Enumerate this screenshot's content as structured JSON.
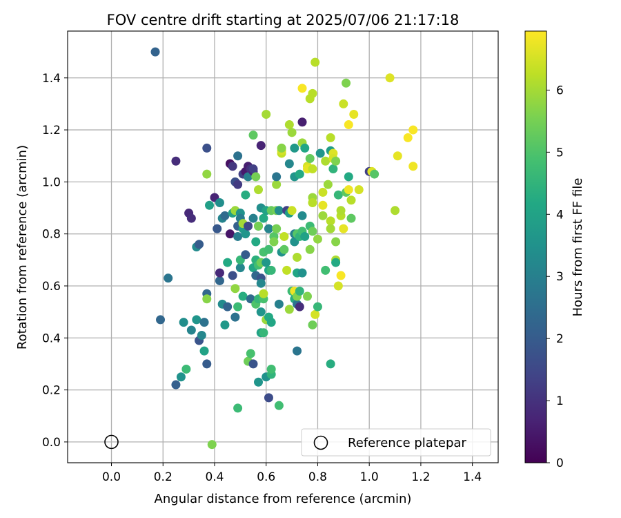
{
  "chart_data": {
    "type": "scatter",
    "title": "FOV centre drift starting at 2025/07/06 21:17:18",
    "xlabel": "Angular distance from reference (arcmin)",
    "ylabel": "Rotation from reference (arcmin)",
    "xlim": [
      -0.17,
      1.5
    ],
    "ylim": [
      -0.08,
      1.58
    ],
    "xticks": [
      0.0,
      0.2,
      0.4,
      0.6,
      0.8,
      1.0,
      1.2,
      1.4
    ],
    "yticks": [
      0.0,
      0.2,
      0.4,
      0.6,
      0.8,
      1.0,
      1.2,
      1.4
    ],
    "xtick_labels": [
      "0.0",
      "0.2",
      "0.4",
      "0.6",
      "0.8",
      "1.0",
      "1.2",
      "1.4"
    ],
    "ytick_labels": [
      "0.0",
      "0.2",
      "0.4",
      "0.6",
      "0.8",
      "1.0",
      "1.2",
      "1.4"
    ],
    "grid": true,
    "colormap": "viridis",
    "colorbar": {
      "label": "Hours from first FF file",
      "range": [
        0,
        6.95
      ],
      "ticks": [
        0,
        1,
        2,
        3,
        4,
        5,
        6
      ],
      "tick_labels": [
        "0",
        "1",
        "2",
        "3",
        "4",
        "5",
        "6"
      ]
    },
    "legend": {
      "position": "lower-right",
      "entries": [
        "Reference platepar"
      ]
    },
    "reference_point": {
      "x": 0.0,
      "y": 0.0
    },
    "series": [
      {
        "points": [
          [
            0.17,
            1.5,
            2.2
          ],
          [
            0.25,
            1.08,
            0.9
          ],
          [
            0.19,
            0.47,
            2.3
          ],
          [
            0.22,
            0.63,
            2.7
          ],
          [
            0.25,
            0.22,
            2.1
          ],
          [
            0.27,
            0.25,
            3.5
          ],
          [
            0.28,
            0.46,
            3.4
          ],
          [
            0.29,
            0.28,
            4.7
          ],
          [
            0.3,
            0.88,
            0.8
          ],
          [
            0.31,
            0.86,
            0.9
          ],
          [
            0.31,
            0.43,
            3.1
          ],
          [
            0.33,
            0.75,
            3.3
          ],
          [
            0.33,
            0.47,
            3.6
          ],
          [
            0.34,
            0.76,
            2.0
          ],
          [
            0.34,
            0.39,
            1.8
          ],
          [
            0.35,
            0.41,
            3.2
          ],
          [
            0.36,
            0.35,
            4.0
          ],
          [
            0.36,
            0.46,
            2.6
          ],
          [
            0.37,
            1.13,
            1.7
          ],
          [
            0.37,
            0.57,
            2.3
          ],
          [
            0.37,
            0.3,
            2.0
          ],
          [
            0.37,
            0.55,
            5.7
          ],
          [
            0.37,
            1.03,
            5.8
          ],
          [
            0.38,
            0.91,
            3.9
          ],
          [
            0.39,
            -0.01,
            5.6
          ],
          [
            0.4,
            0.94,
            0.7
          ],
          [
            0.41,
            0.82,
            1.9
          ],
          [
            0.42,
            0.92,
            3.4
          ],
          [
            0.42,
            0.62,
            2.3
          ],
          [
            0.42,
            0.65,
            0.8
          ],
          [
            0.43,
            0.86,
            3.1
          ],
          [
            0.43,
            0.53,
            3.3
          ],
          [
            0.44,
            0.45,
            3.7
          ],
          [
            0.44,
            0.87,
            2.4
          ],
          [
            0.45,
            0.69,
            4.2
          ],
          [
            0.45,
            0.52,
            2.2
          ],
          [
            0.46,
            0.8,
            0.4
          ],
          [
            0.46,
            1.07,
            0.3
          ],
          [
            0.47,
            1.06,
            1.1
          ],
          [
            0.47,
            0.64,
            1.7
          ],
          [
            0.47,
            0.88,
            3.9
          ],
          [
            0.48,
            0.89,
            5.9
          ],
          [
            0.48,
            0.48,
            2.6
          ],
          [
            0.48,
            0.59,
            5.8
          ],
          [
            0.48,
            1.0,
            1.7
          ],
          [
            0.49,
            0.79,
            2.9
          ],
          [
            0.49,
            0.83,
            2.1
          ],
          [
            0.49,
            1.1,
            2.6
          ],
          [
            0.49,
            0.52,
            4.7
          ],
          [
            0.49,
            0.99,
            1.2
          ],
          [
            0.49,
            0.13,
            4.7
          ],
          [
            0.5,
            0.88,
            3.5
          ],
          [
            0.5,
            0.86,
            2.9
          ],
          [
            0.5,
            0.67,
            3.2
          ],
          [
            0.5,
            0.7,
            4.6
          ],
          [
            0.51,
            0.82,
            3.8
          ],
          [
            0.51,
            0.56,
            4.3
          ],
          [
            0.51,
            0.84,
            6.0
          ],
          [
            0.51,
            1.03,
            1.3
          ],
          [
            0.52,
            1.04,
            0.5
          ],
          [
            0.52,
            0.8,
            3.6
          ],
          [
            0.52,
            0.95,
            4.3
          ],
          [
            0.52,
            0.72,
            2.0
          ],
          [
            0.53,
            0.83,
            1.5
          ],
          [
            0.53,
            1.02,
            3.0
          ],
          [
            0.53,
            0.31,
            5.4
          ],
          [
            0.53,
            1.06,
            0.6
          ],
          [
            0.54,
            0.34,
            4.9
          ],
          [
            0.54,
            1.05,
            1.0
          ],
          [
            0.54,
            0.55,
            2.4
          ],
          [
            0.55,
            1.04,
            0.9
          ],
          [
            0.55,
            0.67,
            4.1
          ],
          [
            0.55,
            1.05,
            1.3
          ],
          [
            0.55,
            0.86,
            3.0
          ],
          [
            0.55,
            0.3,
            1.8
          ],
          [
            0.55,
            1.18,
            5.2
          ],
          [
            0.56,
            0.64,
            2.3
          ],
          [
            0.56,
            0.7,
            4.4
          ],
          [
            0.56,
            0.53,
            5.0
          ],
          [
            0.56,
            1.02,
            5.5
          ],
          [
            0.56,
            0.77,
            4.2
          ],
          [
            0.57,
            0.23,
            3.6
          ],
          [
            0.57,
            0.83,
            3.3
          ],
          [
            0.57,
            0.83,
            5.5
          ],
          [
            0.57,
            0.97,
            6.1
          ],
          [
            0.57,
            0.55,
            4.6
          ],
          [
            0.57,
            0.68,
            4.8
          ],
          [
            0.58,
            0.63,
            1.8
          ],
          [
            0.58,
            0.61,
            3.2
          ],
          [
            0.58,
            0.5,
            3.6
          ],
          [
            0.58,
            0.9,
            3.4
          ],
          [
            0.58,
            1.14,
            0.7
          ],
          [
            0.58,
            0.69,
            5.4
          ],
          [
            0.58,
            0.42,
            4.0
          ],
          [
            0.59,
            0.55,
            4.9
          ],
          [
            0.59,
            0.42,
            4.6
          ],
          [
            0.59,
            0.86,
            4.2
          ],
          [
            0.59,
            0.73,
            4.9
          ],
          [
            0.59,
            0.57,
            6.2
          ],
          [
            0.6,
            1.26,
            6.0
          ],
          [
            0.6,
            0.25,
            3.5
          ],
          [
            0.6,
            0.69,
            3.7
          ],
          [
            0.6,
            0.89,
            4.0
          ],
          [
            0.6,
            0.47,
            5.9
          ],
          [
            0.61,
            0.66,
            4.1
          ],
          [
            0.61,
            0.74,
            4.8
          ],
          [
            0.61,
            0.82,
            3.1
          ],
          [
            0.61,
            0.48,
            4.2
          ],
          [
            0.61,
            0.17,
            1.6
          ],
          [
            0.62,
            0.26,
            4.5
          ],
          [
            0.62,
            0.28,
            4.8
          ],
          [
            0.62,
            0.89,
            5.3
          ],
          [
            0.62,
            0.46,
            4.1
          ],
          [
            0.62,
            0.66,
            4.6
          ],
          [
            0.63,
            0.79,
            5.1
          ],
          [
            0.63,
            0.77,
            5.6
          ],
          [
            0.64,
            0.82,
            5.5
          ],
          [
            0.64,
            0.99,
            5.9
          ],
          [
            0.64,
            1.02,
            2.7
          ],
          [
            0.64,
            0.89,
            5.5
          ],
          [
            0.65,
            0.89,
            3.4
          ],
          [
            0.65,
            0.14,
            4.8
          ],
          [
            0.65,
            0.53,
            3.0
          ],
          [
            0.66,
            0.73,
            3.5
          ],
          [
            0.66,
            1.11,
            6.3
          ],
          [
            0.66,
            1.12,
            6.5
          ],
          [
            0.66,
            1.13,
            5.7
          ],
          [
            0.67,
            0.79,
            6.3
          ],
          [
            0.67,
            0.74,
            5.2
          ],
          [
            0.68,
            0.89,
            1.3
          ],
          [
            0.68,
            0.66,
            6.3
          ],
          [
            0.69,
            1.22,
            6.1
          ],
          [
            0.69,
            0.88,
            3.8
          ],
          [
            0.69,
            0.51,
            5.9
          ],
          [
            0.69,
            1.07,
            3.2
          ],
          [
            0.7,
            1.19,
            5.9
          ],
          [
            0.7,
            0.58,
            4.7
          ],
          [
            0.7,
            0.89,
            6.4
          ],
          [
            0.71,
            1.13,
            3.7
          ],
          [
            0.71,
            1.02,
            3.6
          ],
          [
            0.71,
            0.77,
            3.5
          ],
          [
            0.71,
            0.8,
            3.0
          ],
          [
            0.71,
            0.55,
            4.3
          ],
          [
            0.71,
            0.58,
            6.8
          ],
          [
            0.72,
            0.71,
            6.1
          ],
          [
            0.72,
            0.53,
            2.7
          ],
          [
            0.72,
            0.65,
            4.1
          ],
          [
            0.72,
            0.35,
            2.7
          ],
          [
            0.72,
            0.8,
            5.1
          ],
          [
            0.72,
            0.56,
            5.6
          ],
          [
            0.73,
            0.58,
            4.5
          ],
          [
            0.73,
            0.52,
            0.9
          ],
          [
            0.73,
            1.03,
            4.2
          ],
          [
            0.73,
            0.79,
            4.5
          ],
          [
            0.74,
            1.23,
            0.6
          ],
          [
            0.74,
            0.65,
            3.5
          ],
          [
            0.74,
            0.87,
            3.3
          ],
          [
            0.74,
            1.36,
            6.9
          ],
          [
            0.74,
            0.81,
            4.8
          ],
          [
            0.74,
            1.15,
            5.9
          ],
          [
            0.75,
            1.13,
            4.1
          ],
          [
            0.75,
            0.79,
            4.0
          ],
          [
            0.76,
            0.56,
            5.6
          ],
          [
            0.76,
            1.06,
            6.5
          ],
          [
            0.76,
            1.05,
            6.7
          ],
          [
            0.77,
            1.32,
            6.2
          ],
          [
            0.77,
            0.83,
            4.7
          ],
          [
            0.77,
            0.74,
            5.7
          ],
          [
            0.77,
            1.09,
            5.3
          ],
          [
            0.78,
            1.05,
            6.3
          ],
          [
            0.78,
            0.45,
            5.4
          ],
          [
            0.78,
            0.94,
            5.9
          ],
          [
            0.78,
            0.81,
            5.4
          ],
          [
            0.78,
            0.92,
            6.2
          ],
          [
            0.78,
            1.34,
            6.2
          ],
          [
            0.79,
            1.46,
            6.2
          ],
          [
            0.79,
            0.49,
            6.5
          ],
          [
            0.8,
            0.78,
            5.8
          ],
          [
            0.8,
            0.52,
            4.6
          ],
          [
            0.81,
            1.11,
            3.6
          ],
          [
            0.82,
            0.96,
            6.4
          ],
          [
            0.82,
            0.91,
            6.7
          ],
          [
            0.82,
            0.87,
            5.9
          ],
          [
            0.83,
            0.66,
            4.8
          ],
          [
            0.83,
            1.08,
            6.1
          ],
          [
            0.84,
            0.99,
            5.9
          ],
          [
            0.85,
            1.17,
            6.2
          ],
          [
            0.85,
            0.3,
            4.3
          ],
          [
            0.85,
            1.12,
            3.8
          ],
          [
            0.85,
            0.85,
            6.2
          ],
          [
            0.85,
            0.82,
            6.0
          ],
          [
            0.86,
            1.05,
            4.5
          ],
          [
            0.86,
            1.11,
            6.6
          ],
          [
            0.86,
            1.09,
            6.5
          ],
          [
            0.87,
            0.7,
            6.1
          ],
          [
            0.87,
            1.08,
            5.6
          ],
          [
            0.87,
            0.77,
            5.7
          ],
          [
            0.87,
            0.69,
            4.2
          ],
          [
            0.88,
            0.95,
            4.6
          ],
          [
            0.88,
            0.6,
            6.5
          ],
          [
            0.89,
            0.64,
            6.9
          ],
          [
            0.89,
            0.87,
            6.2
          ],
          [
            0.89,
            0.89,
            6.1
          ],
          [
            0.9,
            1.3,
            6.4
          ],
          [
            0.9,
            0.82,
            6.7
          ],
          [
            0.91,
            1.38,
            5.6
          ],
          [
            0.91,
            0.96,
            5.2
          ],
          [
            0.92,
            0.97,
            6.8
          ],
          [
            0.92,
            1.02,
            4.2
          ],
          [
            0.92,
            1.22,
            6.9
          ],
          [
            0.93,
            0.93,
            6.2
          ],
          [
            0.93,
            0.86,
            5.2
          ],
          [
            0.94,
            1.26,
            6.7
          ],
          [
            0.96,
            0.97,
            6.5
          ],
          [
            1.0,
            1.04,
            1.3
          ],
          [
            1.01,
            1.04,
            6.6
          ],
          [
            1.02,
            1.03,
            5.1
          ],
          [
            1.08,
            1.4,
            6.6
          ],
          [
            1.1,
            0.89,
            6.1
          ],
          [
            1.11,
            1.1,
            6.7
          ],
          [
            1.15,
            1.17,
            6.9
          ],
          [
            1.17,
            1.2,
            6.9
          ],
          [
            1.17,
            1.06,
            6.8
          ]
        ]
      }
    ]
  }
}
